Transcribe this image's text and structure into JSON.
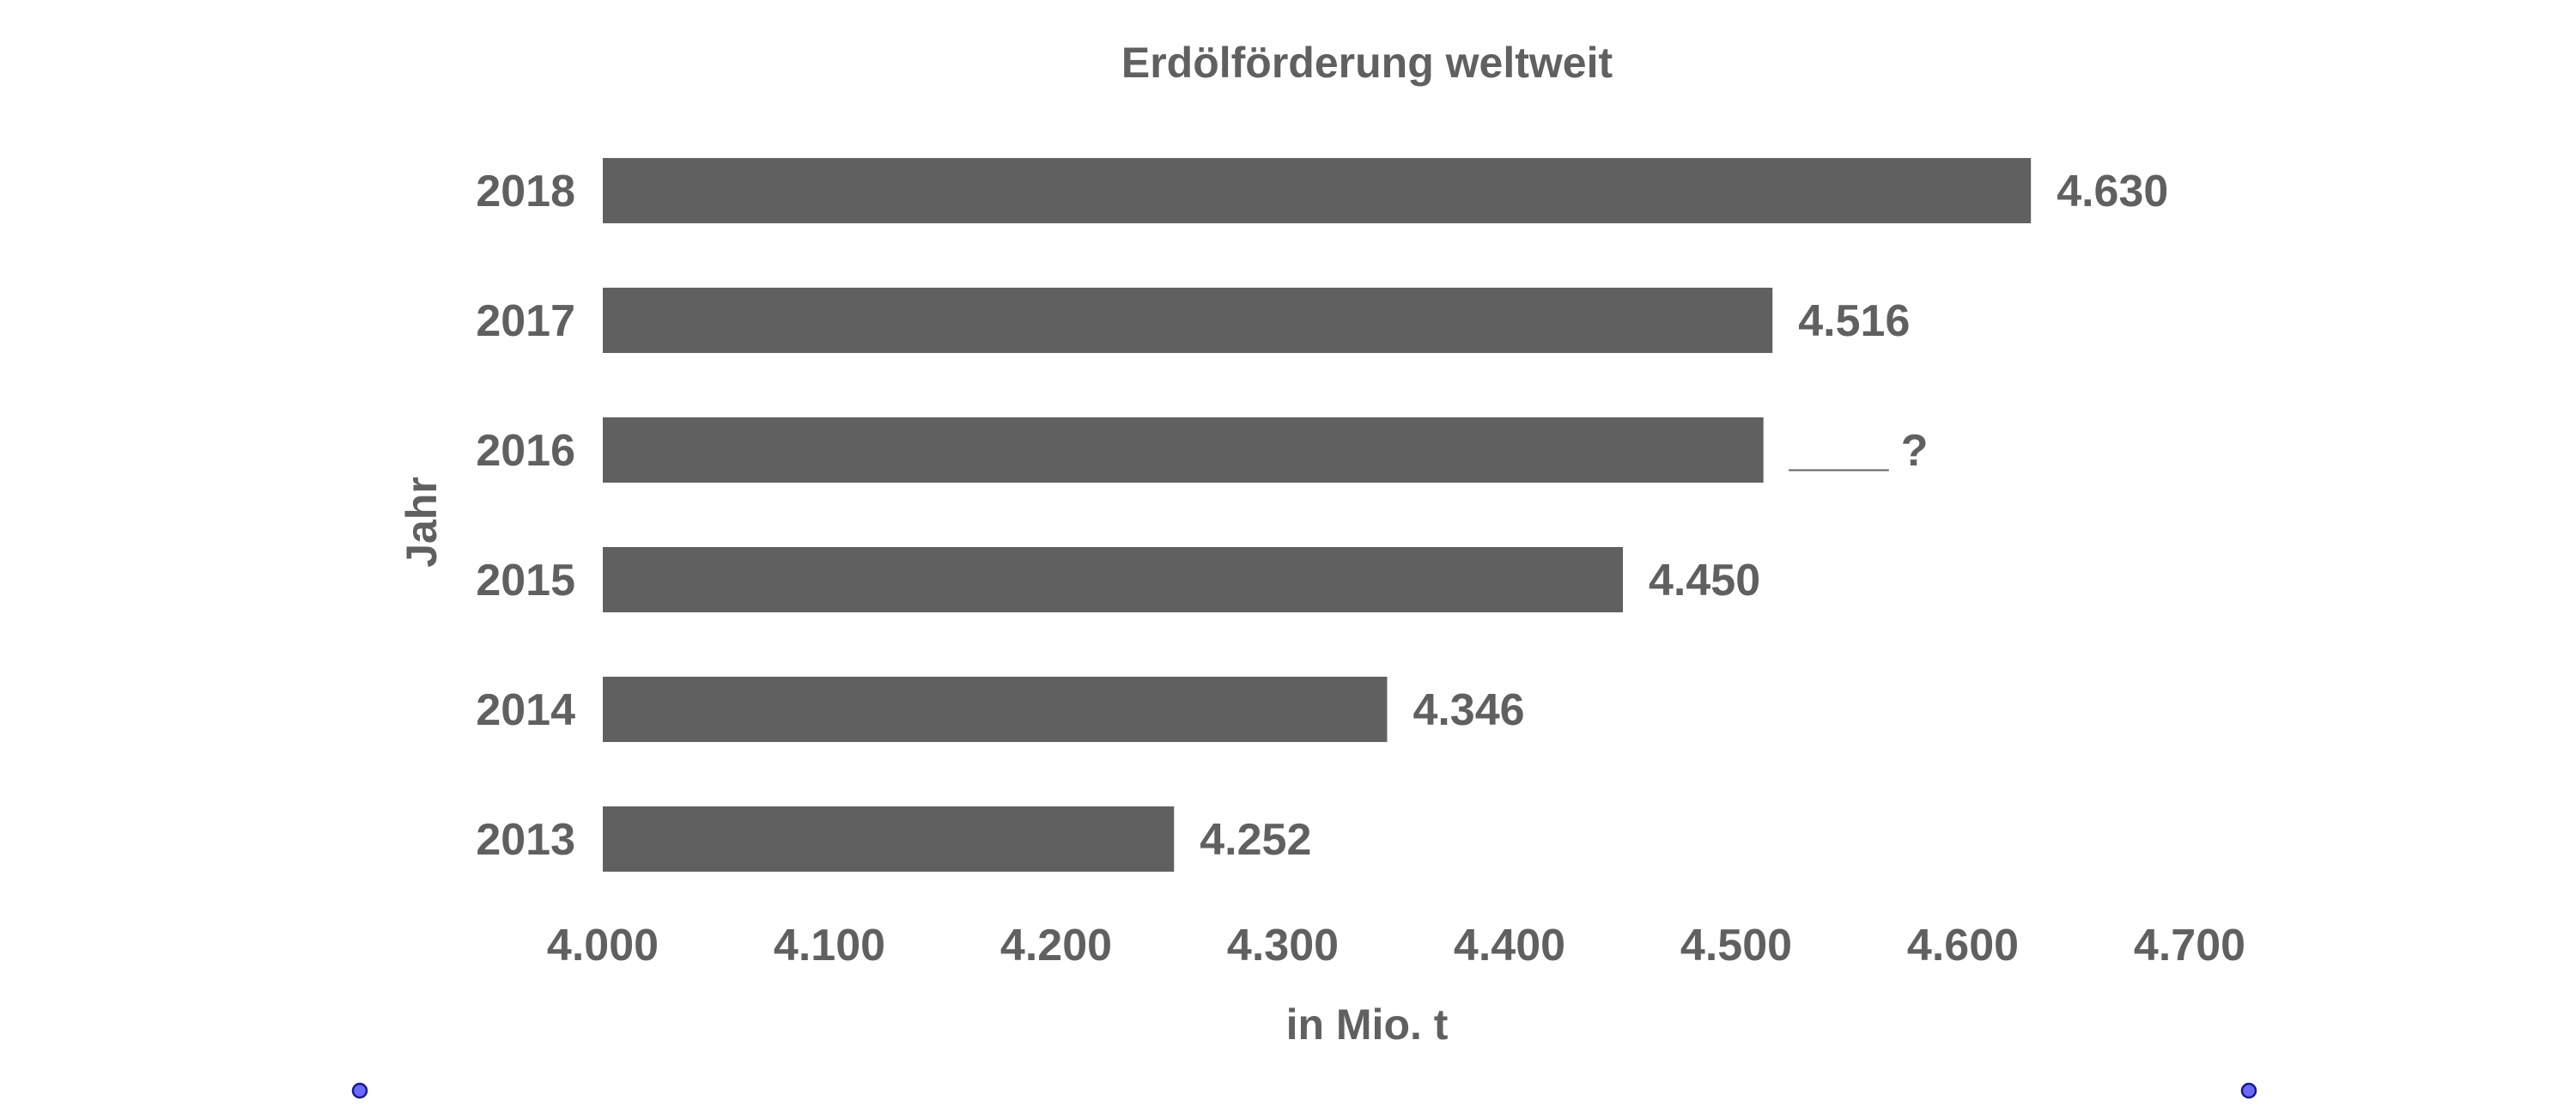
{
  "chart_data": {
    "type": "bar",
    "orientation": "horizontal",
    "title": "Erdölförderung weltweit",
    "xlabel": "in Mio. t",
    "ylabel": "Jahr",
    "categories": [
      "2018",
      "2017",
      "2016",
      "2015",
      "2014",
      "2013"
    ],
    "values": [
      4630,
      4516,
      4512,
      4450,
      4346,
      4252
    ],
    "data_labels": [
      "4.630",
      "4.516",
      "____ ?",
      "4.450",
      "4.346",
      "4.252"
    ],
    "xlim": [
      4000,
      4700
    ],
    "x_ticks": [
      4000,
      4100,
      4200,
      4300,
      4400,
      4500,
      4600,
      4700
    ],
    "x_tick_labels": [
      "4.000",
      "4.100",
      "4.200",
      "4.300",
      "4.400",
      "4.500",
      "4.600",
      "4.700"
    ],
    "grid": false,
    "bar_color": "#606060",
    "text_color": "#606060"
  },
  "handles": {
    "color": "#6a6aff"
  }
}
